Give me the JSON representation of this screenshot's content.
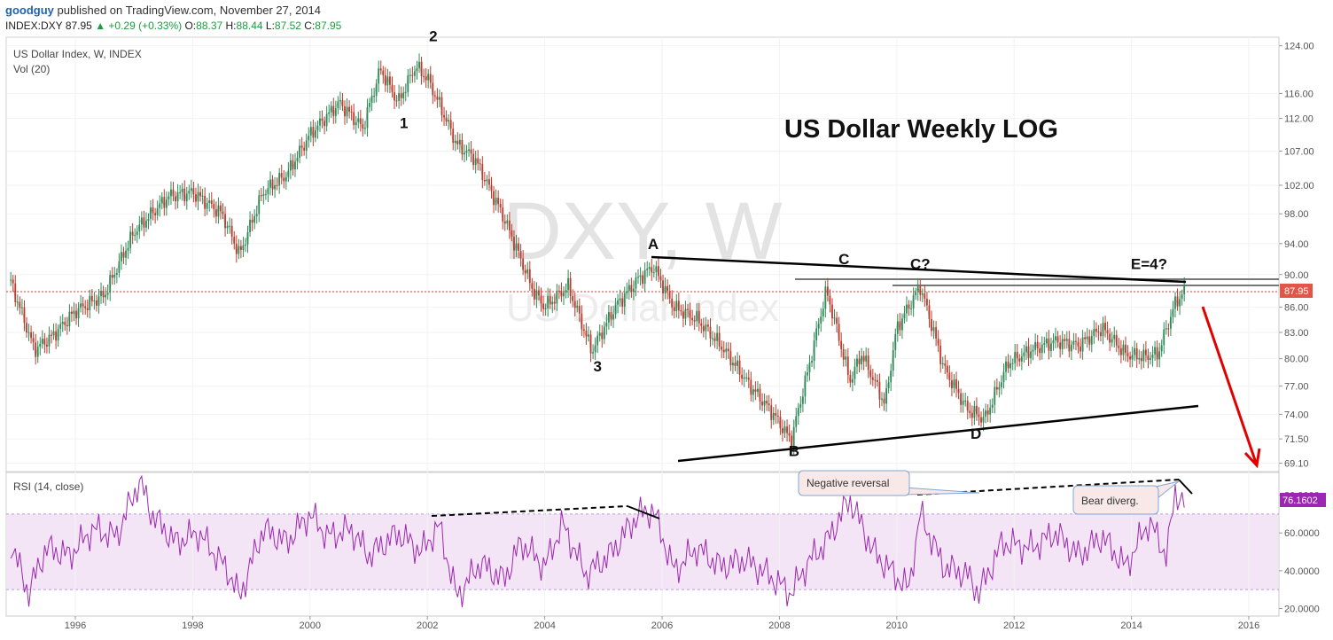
{
  "header": {
    "author": "goodguy",
    "published": "published on TradingView.com, November 27, 2014",
    "symbol": "INDEX:DXY",
    "last": "87.95",
    "change": "▲ +0.29 (+0.33%)",
    "o_label": "O:",
    "o": "88.37",
    "h_label": "H:",
    "h": "88.44",
    "l_label": "L:",
    "l": "87.52",
    "c_label": "C:",
    "c": "87.95"
  },
  "main_pane": {
    "legend1": "US Dollar Index, W, INDEX",
    "legend2": "Vol (20)",
    "watermark1": "DXY, W",
    "watermark2": "US Dollar Index",
    "title": "US Dollar Weekly   LOG",
    "price_badge": "87.95",
    "hidden_badges": [
      "89.47",
      "88.73"
    ]
  },
  "rsi_pane": {
    "legend": "RSI (14, close)",
    "value_badge": "76.1602",
    "note_negative": "Negative reversal",
    "note_bear": "Bear diverg."
  },
  "colors": {
    "candle_up": "#2e8b57",
    "candle_down": "#c0392b",
    "rsi_line": "#9c27b0",
    "rsi_band": "#f3e5f5",
    "price_line": "#e53935",
    "arrow": "#e00000"
  },
  "chart_data": [
    {
      "type": "line",
      "title": "US Dollar Weekly   LOG",
      "series_label": "US Dollar Index, W, INDEX",
      "scale": "log",
      "ylim": [
        68.3,
        125.5
      ],
      "y_ticks": [
        "124.00",
        "116.00",
        "112.00",
        "107.00",
        "102.00",
        "98.00",
        "94.00",
        "90.00",
        "86.00",
        "83.00",
        "80.00",
        "77.00",
        "74.00",
        "71.50",
        "69.10"
      ],
      "x_ticks": [
        "1996",
        "1998",
        "2000",
        "2002",
        "2004",
        "2006",
        "2008",
        "2010",
        "2012",
        "2014",
        "2016"
      ],
      "last_price": 87.95,
      "x": [
        1994.9,
        1995.3,
        1995.6,
        1996.0,
        1996.5,
        1997.0,
        1997.6,
        1998.0,
        1998.5,
        1998.8,
        1999.2,
        1999.6,
        2000.0,
        2000.5,
        2000.9,
        2001.2,
        2001.5,
        2001.8,
        2002.0,
        2002.5,
        2002.8,
        2003.3,
        2003.8,
        2004.0,
        2004.4,
        2004.8,
        2005.2,
        2005.6,
        2005.85,
        2006.2,
        2006.6,
        2007.0,
        2007.5,
        2007.9,
        2008.2,
        2008.5,
        2008.8,
        2009.2,
        2009.4,
        2009.8,
        2010.0,
        2010.4,
        2010.8,
        2011.2,
        2011.5,
        2011.9,
        2012.3,
        2012.7,
        2013.1,
        2013.5,
        2013.9,
        2014.2,
        2014.45,
        2014.6,
        2014.75,
        2014.9
      ],
      "y": [
        89.0,
        81.0,
        82.5,
        85.5,
        87.5,
        95.5,
        100.5,
        101.0,
        98.0,
        92.5,
        101.0,
        103.5,
        109.5,
        114.5,
        110.5,
        120.0,
        114.5,
        120.5,
        118.5,
        108.0,
        106.0,
        97.5,
        88.0,
        86.0,
        88.5,
        80.8,
        86.0,
        89.5,
        91.0,
        86.0,
        84.5,
        81.5,
        77.0,
        74.0,
        71.3,
        79.0,
        88.0,
        77.5,
        80.5,
        75.0,
        83.5,
        88.5,
        79.0,
        74.5,
        73.5,
        79.5,
        81.0,
        82.0,
        81.5,
        83.5,
        80.5,
        80.2,
        80.5,
        83.5,
        86.5,
        87.95
      ],
      "annotations": [
        {
          "label": "1",
          "x": 2001.6,
          "y": 110.5
        },
        {
          "label": "2",
          "x": 2002.1,
          "y": 124.8
        },
        {
          "label": "3",
          "x": 2004.9,
          "y": 78.6
        },
        {
          "label": "A",
          "x": 2005.85,
          "y": 93.3
        },
        {
          "label": "B",
          "x": 2008.25,
          "y": 69.8
        },
        {
          "label": "C",
          "x": 2009.1,
          "y": 91.3
        },
        {
          "label": "C?",
          "x": 2010.4,
          "y": 90.7
        },
        {
          "label": "D",
          "x": 2011.35,
          "y": 71.5
        },
        {
          "label": "E=4?",
          "x": 2014.3,
          "y": 90.7
        }
      ]
    },
    {
      "type": "line",
      "title": "RSI (14, close)",
      "ylim": [
        16,
        92
      ],
      "y_ticks": [
        "80.0000",
        "60.0000",
        "40.0000",
        "20.0000"
      ],
      "band": [
        30,
        70
      ],
      "last_value": 76.1602,
      "x": [
        1994.9,
        1995.2,
        1995.5,
        1995.9,
        1996.3,
        1996.7,
        1997.1,
        1997.3,
        1997.7,
        1998.1,
        1998.6,
        1998.8,
        1999.2,
        1999.6,
        2000.0,
        2000.3,
        2000.7,
        2001.0,
        2001.5,
        2001.9,
        2002.2,
        2002.5,
        2002.9,
        2003.3,
        2003.6,
        2004.0,
        2004.3,
        2004.7,
        2005.1,
        2005.6,
        2005.85,
        2006.2,
        2006.6,
        2007.0,
        2007.4,
        2007.8,
        2008.2,
        2008.5,
        2008.8,
        2009.2,
        2009.6,
        2009.9,
        2010.2,
        2010.4,
        2010.8,
        2011.2,
        2011.4,
        2011.8,
        2012.3,
        2012.7,
        2013.1,
        2013.5,
        2013.9,
        2014.3,
        2014.6,
        2014.75,
        2014.9
      ],
      "y": [
        55,
        28,
        52,
        48,
        62,
        58,
        88,
        70,
        55,
        60,
        40,
        26,
        62,
        55,
        70,
        58,
        62,
        48,
        60,
        50,
        64,
        26,
        44,
        35,
        55,
        42,
        65,
        38,
        48,
        70,
        72,
        40,
        52,
        42,
        46,
        38,
        28,
        45,
        55,
        78,
        50,
        40,
        30,
        70,
        42,
        38,
        28,
        55,
        52,
        60,
        48,
        58,
        42,
        66,
        48,
        82,
        76.16
      ],
      "annotations": [
        {
          "label": "Negative reversal"
        },
        {
          "label": "Bear diverg."
        }
      ]
    }
  ]
}
